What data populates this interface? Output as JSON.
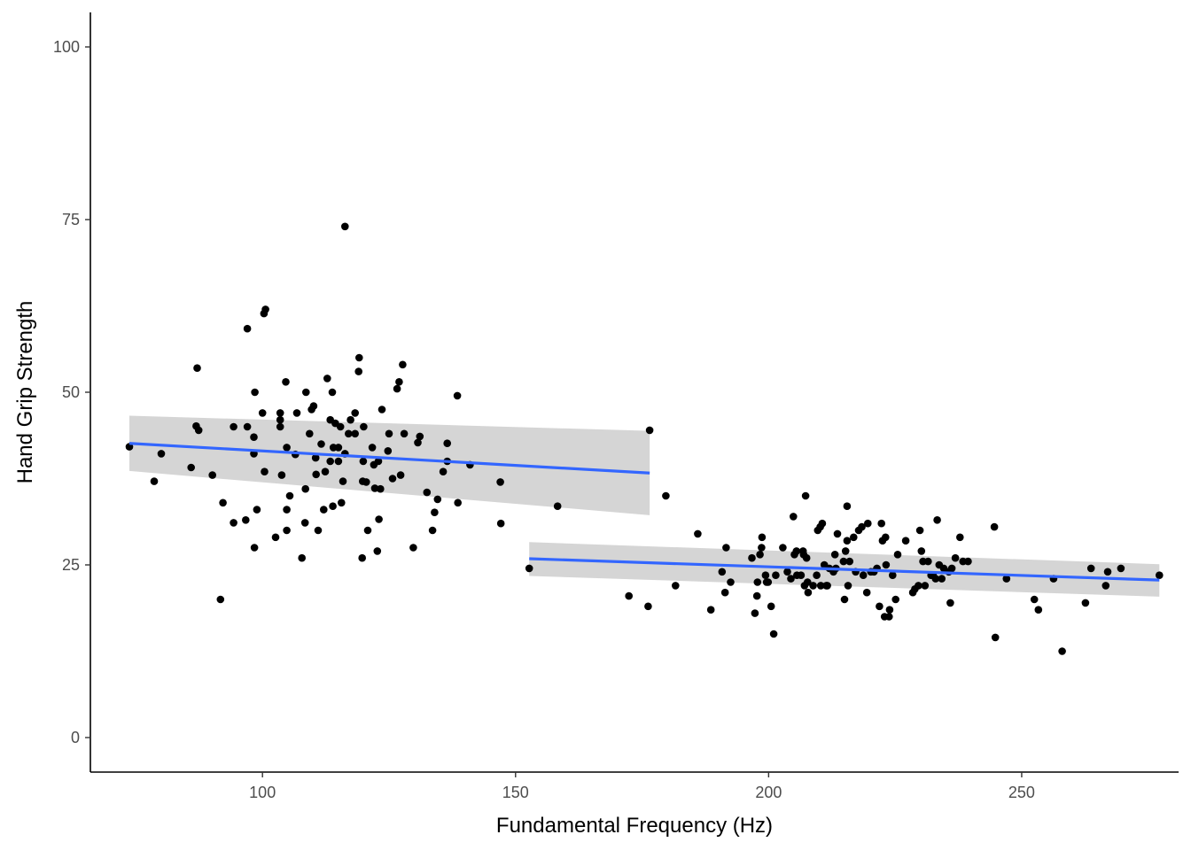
{
  "chart_data": {
    "type": "scatter",
    "xlabel": "Fundamental Frequency (Hz)",
    "ylabel": "Hand Grip Strength",
    "xlim": [
      66,
      281
    ],
    "ylim": [
      -5,
      105
    ],
    "x_ticks": [
      100,
      150,
      200,
      250
    ],
    "y_ticks": [
      0,
      25,
      50,
      75,
      100
    ],
    "grid": false,
    "legend": "none",
    "colors": {
      "points": "#000000",
      "fit_line": "#3366FF",
      "ribbon": "#d3d3d3",
      "axis": "#000000"
    },
    "series": [
      {
        "group": "low",
        "points": [
          [
            73.7,
            42.1
          ],
          [
            80,
            41.1
          ],
          [
            78.6,
            37.1
          ],
          [
            85.9,
            39.1
          ],
          [
            87.1,
            53.5
          ],
          [
            86.9,
            45.1
          ],
          [
            87.4,
            44.5
          ],
          [
            90.1,
            38.0
          ],
          [
            91.7,
            20.0
          ],
          [
            92.2,
            34.0
          ],
          [
            94.3,
            45.0
          ],
          [
            94.3,
            31.1
          ],
          [
            96.7,
            31.5
          ],
          [
            97.0,
            59.2
          ],
          [
            97.0,
            45.0
          ],
          [
            98.3,
            43.5
          ],
          [
            98.3,
            41.1
          ],
          [
            98.4,
            27.5
          ],
          [
            98.5,
            50.0
          ],
          [
            98.9,
            33.0
          ],
          [
            100.0,
            47.0
          ],
          [
            100.3,
            61.4
          ],
          [
            100.4,
            38.5
          ],
          [
            100.6,
            62.0
          ],
          [
            102.6,
            29.0
          ],
          [
            103.5,
            47.0
          ],
          [
            103.5,
            45.0
          ],
          [
            103.5,
            46.0
          ],
          [
            103.8,
            38.0
          ],
          [
            104.6,
            51.5
          ],
          [
            104.8,
            30.0
          ],
          [
            104.8,
            33.0
          ],
          [
            104.8,
            42.0
          ],
          [
            105.4,
            35.0
          ],
          [
            106.5,
            41.0
          ],
          [
            106.8,
            47.0
          ],
          [
            107.8,
            26.0
          ],
          [
            108.5,
            36.0
          ],
          [
            108.4,
            31.1
          ],
          [
            108.6,
            50.0
          ],
          [
            109.3,
            44.0
          ],
          [
            109.7,
            47.5
          ],
          [
            110.1,
            48.0
          ],
          [
            110.5,
            40.5
          ],
          [
            110.6,
            38.1
          ],
          [
            111.0,
            30.0
          ],
          [
            111.6,
            42.5
          ],
          [
            112.1,
            33.0
          ],
          [
            112.4,
            38.5
          ],
          [
            112.8,
            52.0
          ],
          [
            113.4,
            46.0
          ],
          [
            113.4,
            40.0
          ],
          [
            113.8,
            50.0
          ],
          [
            113.9,
            33.5
          ],
          [
            114.0,
            42.0
          ],
          [
            114.4,
            45.5
          ],
          [
            115.0,
            40.0
          ],
          [
            115.0,
            42.0
          ],
          [
            115.4,
            45.0
          ],
          [
            115.6,
            34.0
          ],
          [
            115.9,
            37.1
          ],
          [
            116.3,
            74.0
          ],
          [
            116.3,
            41.1
          ],
          [
            117.0,
            44.0
          ],
          [
            117.4,
            46.0
          ],
          [
            118.3,
            47.0
          ],
          [
            118.3,
            44.0
          ],
          [
            119.0,
            53.0
          ],
          [
            119.1,
            55.0
          ],
          [
            119.7,
            26.0
          ],
          [
            119.8,
            37.1
          ],
          [
            119.9,
            40.0
          ],
          [
            120.0,
            45.0
          ],
          [
            120.5,
            37.0
          ],
          [
            120.8,
            30.0
          ],
          [
            121.7,
            42.0
          ],
          [
            122.0,
            39.5
          ],
          [
            122.2,
            36.1
          ],
          [
            122.7,
            27.0
          ],
          [
            122.9,
            40.0
          ],
          [
            123.0,
            31.6
          ],
          [
            123.3,
            36.0
          ],
          [
            123.6,
            47.5
          ],
          [
            124.8,
            41.5
          ],
          [
            125.0,
            44.0
          ],
          [
            125.7,
            37.5
          ],
          [
            126.6,
            50.5
          ],
          [
            127.0,
            51.5
          ],
          [
            127.3,
            38.0
          ],
          [
            127.7,
            54.0
          ],
          [
            128.0,
            44.0
          ],
          [
            129.8,
            27.5
          ],
          [
            130.7,
            42.7
          ],
          [
            131.1,
            43.6
          ],
          [
            132.5,
            35.5
          ],
          [
            133.6,
            30.0
          ],
          [
            134.0,
            32.6
          ],
          [
            134.6,
            34.5
          ],
          [
            135.7,
            38.5
          ],
          [
            136.5,
            42.6
          ],
          [
            136.5,
            40.0
          ],
          [
            138.5,
            49.5
          ],
          [
            138.6,
            34.0
          ],
          [
            141.0,
            39.5
          ],
          [
            147.0,
            37.0
          ],
          [
            147.1,
            31.0
          ],
          [
            158.3,
            33.5
          ],
          [
            176.5,
            44.5
          ]
        ],
        "fit": {
          "x": [
            73.7,
            176.5
          ],
          "y": [
            42.6,
            38.3
          ]
        },
        "ci_lower": [
          38.6,
          32.2
        ],
        "ci_upper": [
          46.6,
          44.4
        ]
      },
      {
        "group": "high",
        "points": [
          [
            152.7,
            24.5
          ],
          [
            172.4,
            20.5
          ],
          [
            176.2,
            19.0
          ],
          [
            179.7,
            35.0
          ],
          [
            181.6,
            22.0
          ],
          [
            186.0,
            29.5
          ],
          [
            188.6,
            18.5
          ],
          [
            190.8,
            24.0
          ],
          [
            191.4,
            21.0
          ],
          [
            191.6,
            27.5
          ],
          [
            192.5,
            22.5
          ],
          [
            196.7,
            26.0
          ],
          [
            197.3,
            18.0
          ],
          [
            197.7,
            20.5
          ],
          [
            197.8,
            22.5
          ],
          [
            198.3,
            26.5
          ],
          [
            198.6,
            27.5
          ],
          [
            198.7,
            29.0
          ],
          [
            199.4,
            23.5
          ],
          [
            199.6,
            22.5
          ],
          [
            199.9,
            22.5
          ],
          [
            200.5,
            19.0
          ],
          [
            201.0,
            15.0
          ],
          [
            201.4,
            23.5
          ],
          [
            202.8,
            27.5
          ],
          [
            203.7,
            24.0
          ],
          [
            204.4,
            23.0
          ],
          [
            204.9,
            32.0
          ],
          [
            205.1,
            26.5
          ],
          [
            205.5,
            27.0
          ],
          [
            205.6,
            23.5
          ],
          [
            206.4,
            23.5
          ],
          [
            206.8,
            27.0
          ],
          [
            206.9,
            26.5
          ],
          [
            207.1,
            22.0
          ],
          [
            207.3,
            35.0
          ],
          [
            207.5,
            26.0
          ],
          [
            207.7,
            22.5
          ],
          [
            207.8,
            21.0
          ],
          [
            208.8,
            22.0
          ],
          [
            209.5,
            23.5
          ],
          [
            209.7,
            30.0
          ],
          [
            210.2,
            30.5
          ],
          [
            210.3,
            22.0
          ],
          [
            210.6,
            31.0
          ],
          [
            211.0,
            25.0
          ],
          [
            211.4,
            22.0
          ],
          [
            211.6,
            22.0
          ],
          [
            212.0,
            24.5
          ],
          [
            212.8,
            24.0
          ],
          [
            213.1,
            26.5
          ],
          [
            213.3,
            24.5
          ],
          [
            213.6,
            29.5
          ],
          [
            214.8,
            25.5
          ],
          [
            215.0,
            20.0
          ],
          [
            215.2,
            27.0
          ],
          [
            215.5,
            28.5
          ],
          [
            215.5,
            33.5
          ],
          [
            215.7,
            22.0
          ],
          [
            216.0,
            25.5
          ],
          [
            216.8,
            29.0
          ],
          [
            217.2,
            24.0
          ],
          [
            217.8,
            30.0
          ],
          [
            218.4,
            30.5
          ],
          [
            218.7,
            23.5
          ],
          [
            219.4,
            21.0
          ],
          [
            219.6,
            31.0
          ],
          [
            220.2,
            24.0
          ],
          [
            220.8,
            24.0
          ],
          [
            221.4,
            24.5
          ],
          [
            221.9,
            19.0
          ],
          [
            222.3,
            31.0
          ],
          [
            222.5,
            28.5
          ],
          [
            222.9,
            17.5
          ],
          [
            223.1,
            29.0
          ],
          [
            223.2,
            25.0
          ],
          [
            223.8,
            17.5
          ],
          [
            223.9,
            18.5
          ],
          [
            224.5,
            23.5
          ],
          [
            225.1,
            20.0
          ],
          [
            225.5,
            26.5
          ],
          [
            227.1,
            28.5
          ],
          [
            228.5,
            21.0
          ],
          [
            228.9,
            21.5
          ],
          [
            229.6,
            22.0
          ],
          [
            229.9,
            30.0
          ],
          [
            230.2,
            27.0
          ],
          [
            230.5,
            25.5
          ],
          [
            230.9,
            22.0
          ],
          [
            231.5,
            25.5
          ],
          [
            232.1,
            23.5
          ],
          [
            232.5,
            23.5
          ],
          [
            233.0,
            23.0
          ],
          [
            233.3,
            31.5
          ],
          [
            233.7,
            25.0
          ],
          [
            234.2,
            23.0
          ],
          [
            234.6,
            24.5
          ],
          [
            235.6,
            24.0
          ],
          [
            235.9,
            19.5
          ],
          [
            236.2,
            24.5
          ],
          [
            236.9,
            26.0
          ],
          [
            237.8,
            29.0
          ],
          [
            238.4,
            25.5
          ],
          [
            239.4,
            25.5
          ],
          [
            244.6,
            30.5
          ],
          [
            244.8,
            14.5
          ],
          [
            247.0,
            23.0
          ],
          [
            252.5,
            20.0
          ],
          [
            253.3,
            18.5
          ],
          [
            256.3,
            23.0
          ],
          [
            258.0,
            12.5
          ],
          [
            262.6,
            19.5
          ],
          [
            263.7,
            24.5
          ],
          [
            266.6,
            22.0
          ],
          [
            267.0,
            24.0
          ],
          [
            269.6,
            24.5
          ],
          [
            277.2,
            23.5
          ]
        ],
        "fit": {
          "x": [
            152.7,
            277.2
          ],
          "y": [
            25.9,
            22.8
          ]
        },
        "ci_lower": [
          23.4,
          20.4
        ],
        "ci_upper": [
          28.3,
          25.1
        ]
      }
    ]
  }
}
